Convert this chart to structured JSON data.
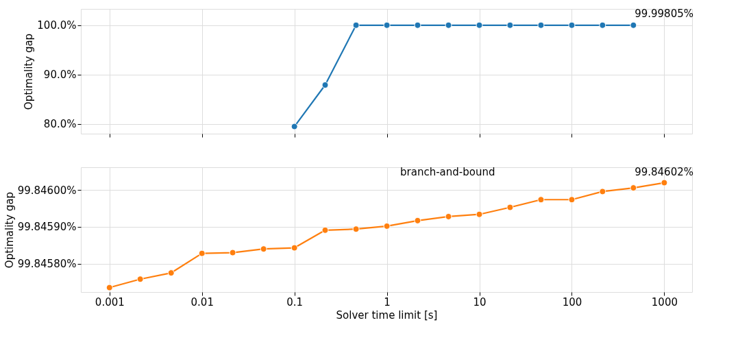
{
  "chart_data": [
    {
      "type": "line",
      "ylabel": "Optimality gap",
      "annotations": [
        "99.99805%"
      ],
      "log": "x",
      "grid": true,
      "marker": "circle",
      "line_style": "solid",
      "tick_labels": "y",
      "xlim": [
        0.00049,
        2000
      ],
      "xticks": [
        0.001,
        0.01,
        0.1,
        1,
        10,
        100,
        1000
      ],
      "ylim": [
        78.05,
        103.3
      ],
      "yticks": [
        {
          "value": 80,
          "label": "80.0%"
        },
        {
          "value": 90,
          "label": "90.0%"
        },
        {
          "value": 100,
          "label": "100.0%"
        }
      ],
      "series": [
        {
          "color": "#1f77b4",
          "x": [
            0.1,
            0.215,
            0.464,
            1,
            2.15,
            4.64,
            10,
            21.5,
            46.4,
            100,
            215,
            464
          ],
          "values": [
            79.5,
            87.9,
            100,
            100,
            100,
            100,
            100,
            100,
            100,
            100,
            100,
            99.99805
          ]
        }
      ]
    },
    {
      "type": "line",
      "title": "branch-and-bound",
      "xlabel": "Solver time limit [s]",
      "ylabel": "Optimality gap",
      "annotations": [
        "99.84602%"
      ],
      "log": "x",
      "grid": true,
      "marker": "circle",
      "line_style": "solid",
      "xlim": [
        0.00049,
        2000
      ],
      "xticks": [
        {
          "value": 0.001,
          "label": "0.001"
        },
        {
          "value": 0.01,
          "label": "0.01"
        },
        {
          "value": 0.1,
          "label": "0.1"
        },
        1,
        10,
        100,
        1000
      ],
      "ylim": [
        99.845723,
        99.846062
      ],
      "yticks": [
        {
          "value": 99.8458,
          "label": "99.84580%"
        },
        {
          "value": 99.8459,
          "label": "99.84590%"
        },
        {
          "value": 99.846,
          "label": "99.84600%"
        }
      ],
      "series": [
        {
          "color": "#ff7f0e",
          "x": [
            0.001,
            0.00215,
            0.00464,
            0.01,
            0.0215,
            0.0464,
            0.1,
            0.215,
            0.464,
            1,
            2.15,
            4.64,
            10,
            21.5,
            46.4,
            100,
            215,
            464,
            1000
          ],
          "values": [
            99.845735,
            99.845758,
            99.845775,
            99.845828,
            99.84583,
            99.84584,
            99.845843,
            99.845891,
            99.845894,
            99.845902,
            99.845917,
            99.845928,
            99.845934,
            99.845953,
            99.845974,
            99.845974,
            99.845996,
            99.846006,
            99.84602
          ]
        }
      ]
    }
  ]
}
